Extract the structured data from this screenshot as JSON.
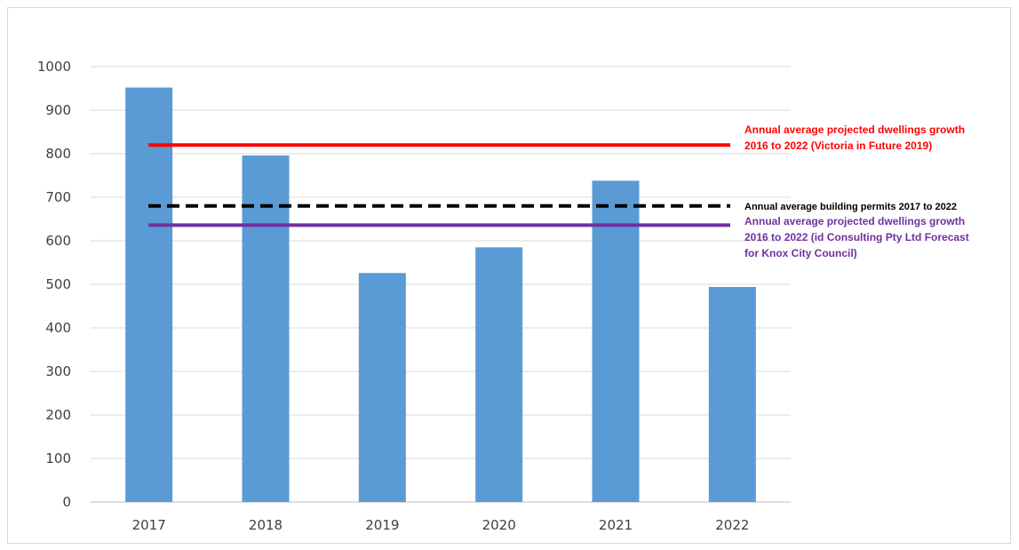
{
  "chart_data": {
    "type": "bar",
    "title": "",
    "xlabel": "",
    "ylabel": "",
    "categories": [
      "2017",
      "2018",
      "2019",
      "2020",
      "2021",
      "2022"
    ],
    "series": [
      {
        "values": [
          952,
          796,
          526,
          585,
          738,
          494
        ],
        "color": "#5b9bd5"
      }
    ],
    "ylim": [
      0,
      1000
    ],
    "yticks": [
      "0",
      "100",
      "200",
      "300",
      "400",
      "500",
      "600",
      "700",
      "800",
      "900",
      "1000"
    ],
    "grid": true,
    "reference_lines": [
      {
        "value": 820,
        "color": "#ff0000",
        "style": "solid",
        "label_lines": [
          "Annual average projected dwellings growth",
          "2016 to 2022 (Victoria in Future 2019)"
        ]
      },
      {
        "value": 680,
        "color": "#000000",
        "style": "dashed",
        "label_lines": [
          "Annual average building permits 2017 to 2022"
        ]
      },
      {
        "value": 636,
        "color": "#7030a0",
        "style": "solid",
        "label_lines": [
          "Annual average projected dwellings growth",
          "2016 to 2022 (id Consulting Pty Ltd Forecast",
          "for Knox City Council)"
        ]
      }
    ]
  }
}
